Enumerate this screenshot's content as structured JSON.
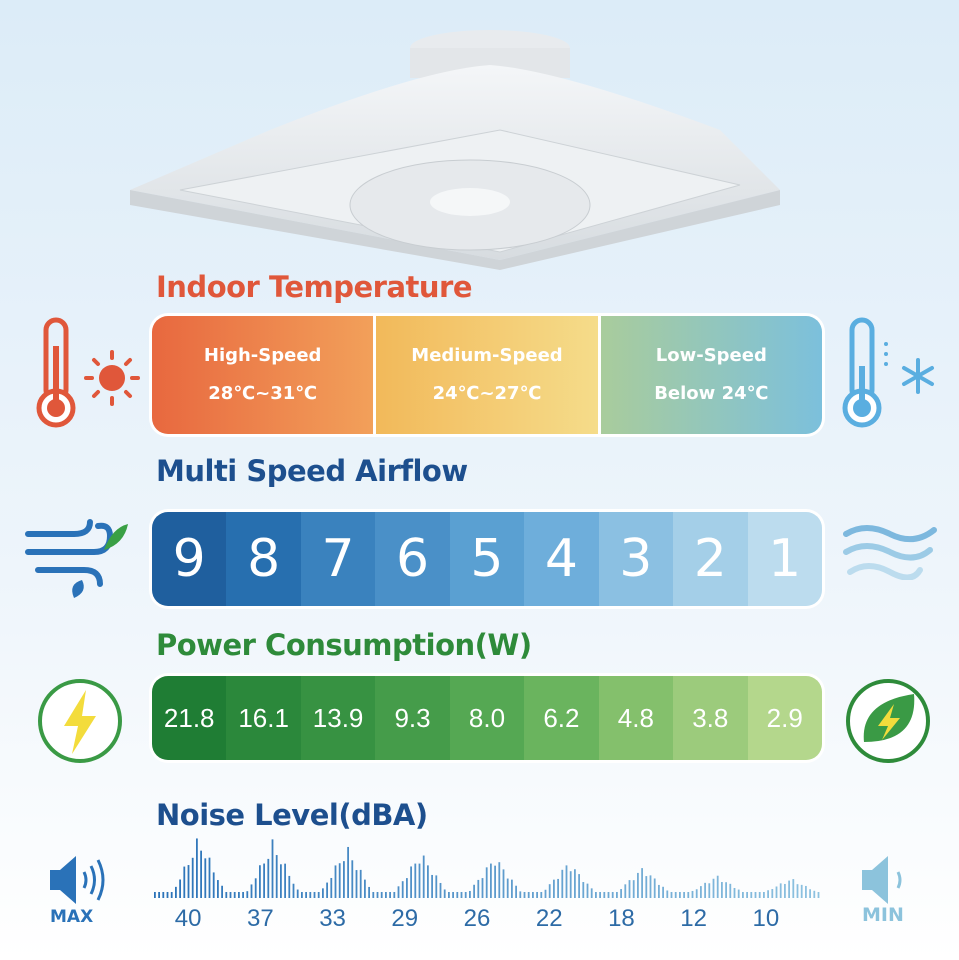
{
  "temperature": {
    "title": "Indoor Temperature",
    "color": "#e0573a",
    "segments": [
      {
        "label": "High-Speed",
        "range": "28℃~31℃"
      },
      {
        "label": "Medium-Speed",
        "range": "24℃~27℃"
      },
      {
        "label": "Low-Speed",
        "range": "Below 24℃"
      }
    ]
  },
  "airflow": {
    "title": "Multi Speed Airflow",
    "color": "#1d4f8e",
    "speeds": [
      "9",
      "8",
      "7",
      "6",
      "5",
      "4",
      "3",
      "2",
      "1"
    ]
  },
  "power": {
    "title": "Power Consumption(W)",
    "color": "#2e8b3a",
    "values": [
      "21.8",
      "16.1",
      "13.9",
      "9.3",
      "8.0",
      "6.2",
      "4.8",
      "3.8",
      "2.9"
    ]
  },
  "noise": {
    "title": "Noise Level(dBA)",
    "color": "#1d4f8e",
    "values": [
      "40",
      "37",
      "33",
      "29",
      "26",
      "22",
      "18",
      "12",
      "10"
    ],
    "max_label": "MAX",
    "min_label": "MIN"
  }
}
